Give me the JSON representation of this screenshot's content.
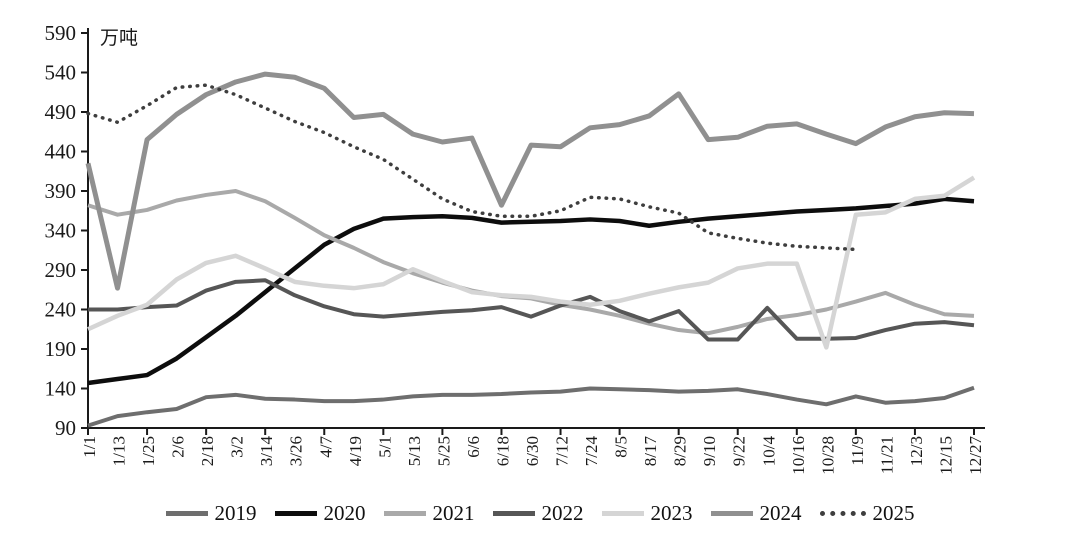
{
  "chart_data": {
    "type": "line",
    "title": "",
    "unit_label": "万吨",
    "grid": false,
    "legend_position": "bottom",
    "y_axis": {
      "min": 90,
      "max": 590,
      "step": 50
    },
    "categories": [
      "1/1",
      "1/13",
      "1/25",
      "2/6",
      "2/18",
      "3/2",
      "3/14",
      "3/26",
      "4/7",
      "4/19",
      "5/1",
      "5/13",
      "5/25",
      "6/6",
      "6/18",
      "6/30",
      "7/12",
      "7/24",
      "8/5",
      "8/17",
      "8/29",
      "9/10",
      "9/22",
      "10/4",
      "10/16",
      "10/28",
      "11/9",
      "11/21",
      "12/3",
      "12/15",
      "12/27"
    ],
    "series": [
      {
        "name": "2019",
        "color": "#6e6e6e",
        "width": 4,
        "dotted": false,
        "values": [
          93,
          105,
          110,
          114,
          129,
          132,
          127,
          126,
          124,
          124,
          126,
          130,
          132,
          132,
          133,
          135,
          136,
          140,
          139,
          138,
          136,
          137,
          139,
          133,
          126,
          120,
          130,
          122,
          124,
          128,
          141
        ]
      },
      {
        "name": "2020",
        "color": "#0d0d0d",
        "width": 4.5,
        "dotted": false,
        "values": [
          147,
          152,
          157,
          178,
          205,
          232,
          262,
          292,
          322,
          342,
          355,
          357,
          358,
          356,
          350,
          351,
          352,
          354,
          352,
          346,
          351,
          355,
          358,
          361,
          364,
          366,
          368,
          371,
          374,
          380,
          377
        ]
      },
      {
        "name": "2021",
        "color": "#a9a9a9",
        "width": 4,
        "dotted": false,
        "values": [
          372,
          360,
          366,
          378,
          385,
          390,
          377,
          356,
          334,
          318,
          300,
          286,
          274,
          264,
          257,
          254,
          246,
          240,
          232,
          222,
          214,
          210,
          218,
          228,
          233,
          240,
          250,
          261,
          246,
          234,
          232
        ]
      },
      {
        "name": "2022",
        "color": "#565656",
        "width": 4,
        "dotted": false,
        "values": [
          240,
          240,
          243,
          245,
          264,
          275,
          277,
          258,
          244,
          234,
          231,
          234,
          237,
          239,
          243,
          231,
          245,
          256,
          238,
          225,
          238,
          202,
          202,
          242,
          203,
          203,
          204,
          214,
          222,
          224,
          220
        ]
      },
      {
        "name": "2023",
        "color": "#d5d5d5",
        "width": 4.5,
        "dotted": false,
        "values": [
          215,
          232,
          246,
          278,
          299,
          308,
          292,
          275,
          270,
          267,
          272,
          291,
          276,
          262,
          258,
          256,
          250,
          246,
          251,
          260,
          268,
          274,
          292,
          298,
          298,
          192,
          360,
          363,
          380,
          384,
          407
        ]
      },
      {
        "name": "2024",
        "color": "#909090",
        "width": 5,
        "dotted": false,
        "values": [
          425,
          267,
          455,
          487,
          512,
          528,
          538,
          534,
          520,
          483,
          487,
          462,
          452,
          457,
          372,
          448,
          446,
          470,
          474,
          485,
          513,
          455,
          458,
          472,
          475,
          462,
          450,
          471,
          484,
          489,
          488
        ]
      },
      {
        "name": "2025",
        "color": "#3e3e3e",
        "width": 3.5,
        "dotted": true,
        "values": [
          488,
          477,
          498,
          521,
          524,
          512,
          495,
          478,
          464,
          446,
          430,
          405,
          380,
          364,
          358,
          358,
          365,
          382,
          380,
          370,
          362,
          337,
          330,
          324,
          320,
          318,
          316,
          null,
          null,
          null,
          null
        ]
      }
    ]
  }
}
